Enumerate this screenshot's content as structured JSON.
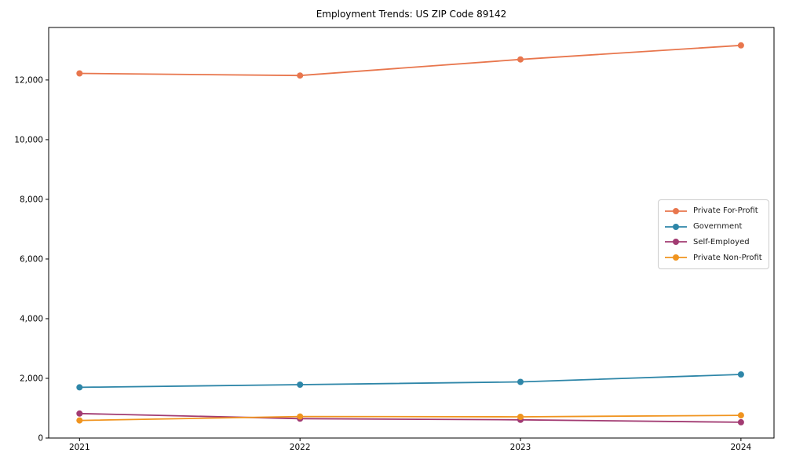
{
  "chart_data": {
    "type": "line",
    "title": "Employment Trends: US ZIP Code 89142",
    "xlabel": "",
    "ylabel": "",
    "grid": false,
    "legend_position": "center right",
    "x": [
      2021,
      2022,
      2023,
      2024
    ],
    "x_tick_labels": [
      "2021",
      "2022",
      "2023",
      "2024"
    ],
    "xlim": [
      2020.86,
      2024.15
    ],
    "ylim": [
      0,
      13760
    ],
    "yticks": [
      0,
      2000,
      4000,
      6000,
      8000,
      10000,
      12000
    ],
    "ytick_labels": [
      "0",
      "2,000",
      "4,000",
      "6,000",
      "8,000",
      "10,000",
      "12,000"
    ],
    "series": [
      {
        "name": "Private For-Profit",
        "color": "#E8764D",
        "marker": "circle",
        "values": [
          12220,
          12150,
          12690,
          13160
        ]
      },
      {
        "name": "Government",
        "color": "#2E86A8",
        "marker": "circle",
        "values": [
          1700,
          1790,
          1880,
          2130
        ]
      },
      {
        "name": "Self-Employed",
        "color": "#A23B72",
        "marker": "circle",
        "values": [
          820,
          650,
          610,
          530
        ]
      },
      {
        "name": "Private Non-Profit",
        "color": "#F0941F",
        "marker": "circle",
        "values": [
          590,
          720,
          710,
          760
        ]
      }
    ],
    "spine_color": "#000000",
    "background": "#ffffff"
  }
}
